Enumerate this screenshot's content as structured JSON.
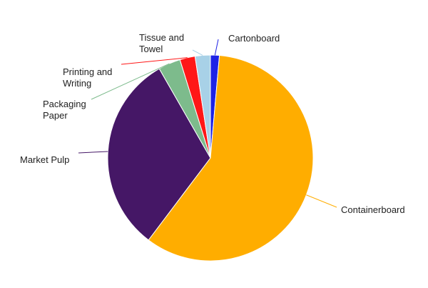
{
  "chart_data": {
    "type": "pie",
    "title": "",
    "slices": [
      {
        "label": "Cartonboard",
        "value": 1.4,
        "color": "#1E22E6"
      },
      {
        "label": "Containerboard",
        "value": 58.9,
        "color": "#FFAD00"
      },
      {
        "label": "Market Pulp",
        "value": 31.4,
        "color": "#451766"
      },
      {
        "label": "Packaging Paper",
        "value": 3.5,
        "color": "#7DBB8C"
      },
      {
        "label": "Printing and Writing",
        "value": 2.4,
        "color": "#FF1717"
      },
      {
        "label": "Tissue and Towel",
        "value": 2.4,
        "color": "#A8D1E7"
      }
    ],
    "legend": "none"
  }
}
